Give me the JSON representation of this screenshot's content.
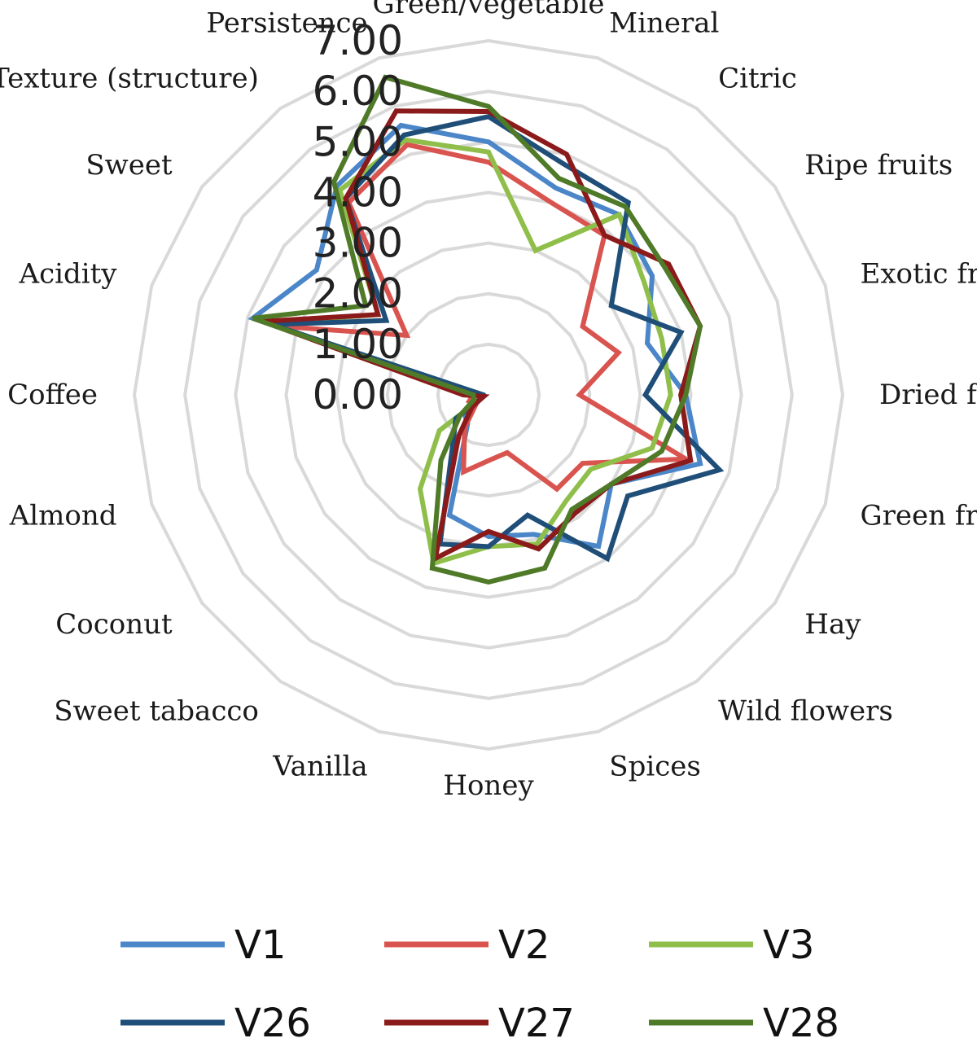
{
  "chart_data": {
    "type": "radar",
    "axes": [
      "Green/vegetable",
      "Mineral",
      "Citric",
      "Ripe fruits",
      "Exotic fruits",
      "Dried fruits",
      "Green fruits",
      "Hay",
      "Wild flowers",
      "Spices",
      "Honey",
      "Vanilla",
      "Sweet tabacco",
      "Coconut",
      "Almond",
      "Coffee",
      "Acidity",
      "Sweet",
      "Texture (structure)",
      "Persistence"
    ],
    "ticks": [
      "0.00",
      "1.00",
      "2.00",
      "3.00",
      "4.00",
      "5.00",
      "6.00",
      "7.00"
    ],
    "rmax": 7,
    "grid": true,
    "legend_position": "bottom",
    "series": [
      {
        "name": "V1",
        "color": "#4a86c8",
        "values": [
          5.0,
          4.3,
          4.4,
          4.0,
          3.3,
          3.9,
          4.4,
          3.0,
          3.7,
          2.9,
          2.8,
          2.5,
          0.7,
          0.6,
          0.1,
          0.3,
          4.9,
          4.2,
          5.1,
          5.6
        ]
      },
      {
        "name": "V2",
        "color": "#d9534f",
        "values": [
          4.6,
          4.0,
          3.9,
          2.3,
          2.7,
          1.8,
          4.1,
          2.3,
          2.3,
          1.2,
          1.3,
          1.6,
          0.8,
          0.3,
          0.4,
          0.3,
          4.4,
          2.0,
          4.7,
          5.2
        ]
      },
      {
        "name": "V3",
        "color": "#8fbf4a",
        "values": [
          4.8,
          3.0,
          4.4,
          3.8,
          3.6,
          3.6,
          3.4,
          2.5,
          2.6,
          3.1,
          3.0,
          3.5,
          2.3,
          1.2,
          0.1,
          0.1,
          4.6,
          2.7,
          5.0,
          5.3
        ]
      },
      {
        "name": "V26",
        "color": "#1f4e79",
        "values": [
          5.5,
          4.8,
          4.7,
          3.0,
          4.0,
          3.1,
          4.8,
          3.4,
          4.0,
          2.5,
          3.0,
          3.1,
          1.2,
          0.8,
          0.1,
          0.1,
          4.5,
          2.5,
          4.8,
          5.4
        ]
      },
      {
        "name": "V27",
        "color": "#8b1a1a",
        "values": [
          5.6,
          5.0,
          3.9,
          4.4,
          4.4,
          3.8,
          4.2,
          3.0,
          2.9,
          3.2,
          2.7,
          3.4,
          1.0,
          0.4,
          0.1,
          0.5,
          4.7,
          2.7,
          4.8,
          5.9
        ]
      },
      {
        "name": "V28",
        "color": "#4f7a28",
        "values": [
          5.7,
          4.5,
          4.6,
          4.3,
          4.4,
          3.9,
          3.6,
          3.0,
          2.8,
          3.6,
          3.7,
          3.6,
          1.6,
          0.7,
          0.3,
          0.3,
          4.9,
          3.0,
          5.2,
          6.6
        ]
      }
    ]
  }
}
